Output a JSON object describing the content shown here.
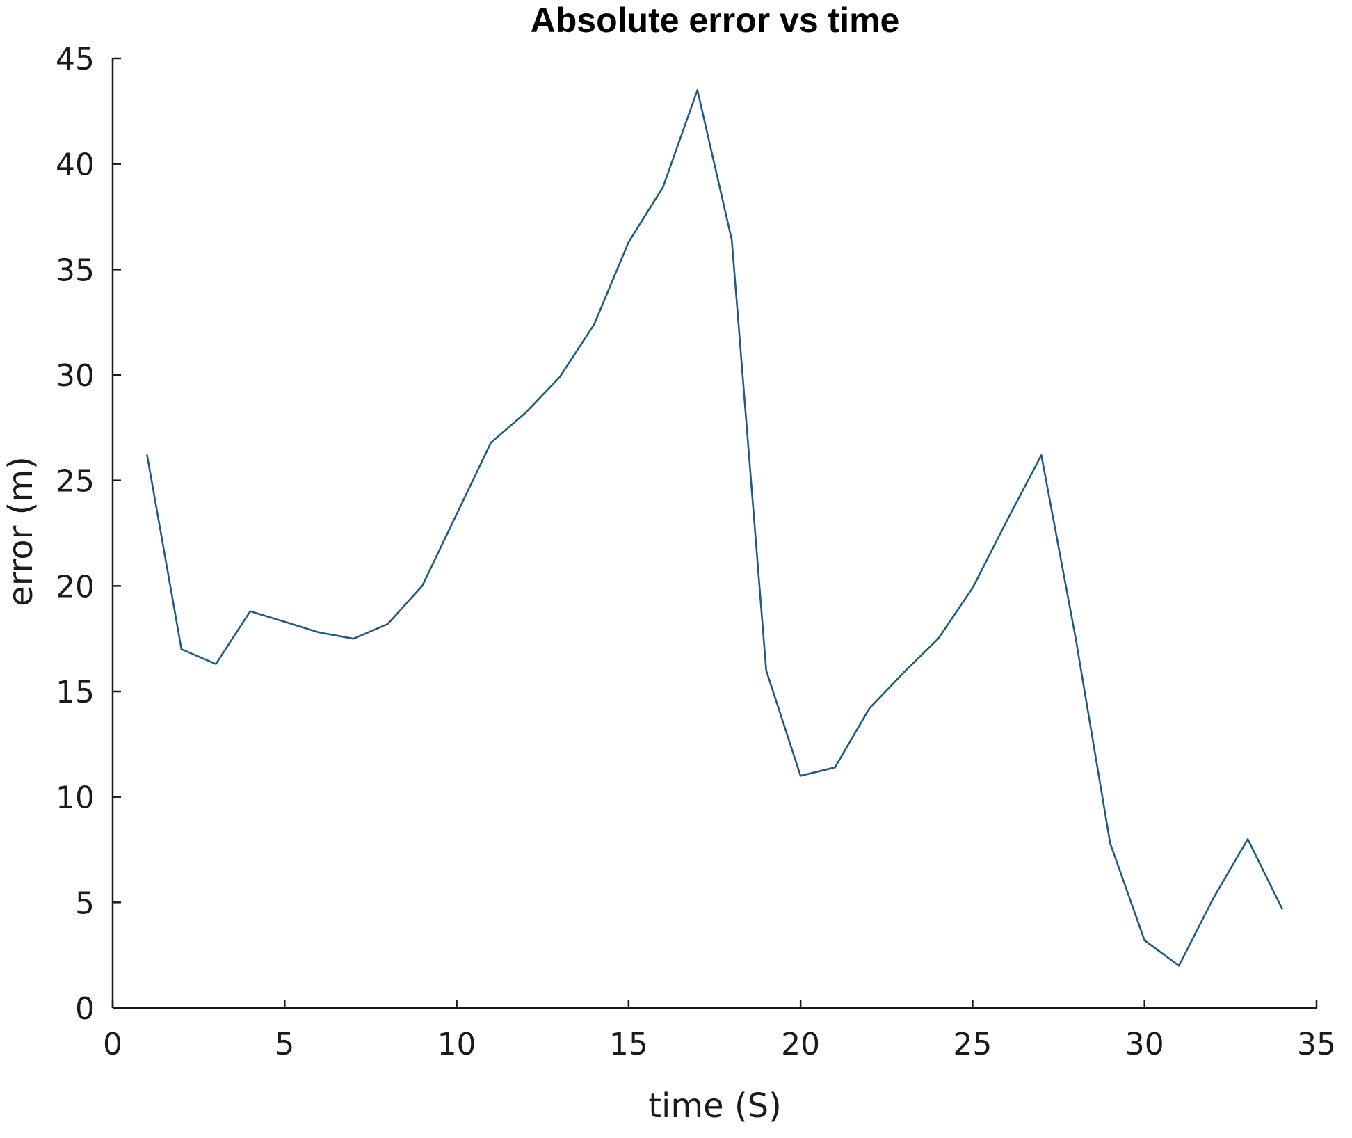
{
  "chart_data": {
    "type": "line",
    "title": "Absolute error vs time",
    "xlabel": "time (S)",
    "ylabel": "error (m)",
    "xlim": [
      0,
      35
    ],
    "ylim": [
      0,
      45
    ],
    "xticks": [
      0,
      5,
      10,
      15,
      20,
      25,
      30,
      35
    ],
    "yticks": [
      0,
      5,
      10,
      15,
      20,
      25,
      30,
      35,
      40,
      45
    ],
    "grid": false,
    "line_color": "#1f5a85",
    "series": [
      {
        "x": [
          1,
          2,
          3,
          4,
          5,
          6,
          7,
          8,
          9,
          10,
          11,
          12,
          13,
          14,
          15,
          16,
          17,
          18,
          19,
          20,
          21,
          22,
          23,
          24,
          25,
          26,
          27,
          28,
          29,
          30,
          31,
          32,
          33,
          34
        ],
        "y": [
          26.2,
          17.0,
          16.3,
          18.8,
          18.3,
          17.8,
          17.5,
          18.2,
          20.0,
          23.4,
          26.8,
          28.2,
          29.9,
          32.4,
          36.3,
          38.9,
          43.5,
          36.4,
          16.0,
          11.0,
          11.4,
          14.2,
          15.9,
          17.5,
          19.9,
          23.1,
          26.2,
          17.5,
          7.8,
          3.2,
          2.0,
          5.2,
          8.0,
          4.7
        ]
      }
    ]
  }
}
